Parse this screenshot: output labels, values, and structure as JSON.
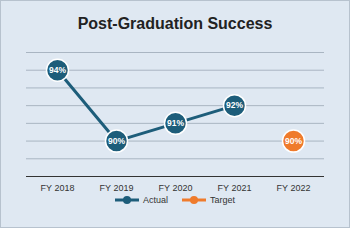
{
  "chart_data": {
    "type": "line",
    "title": "Post-Graduation Success",
    "categories": [
      "FY 2018",
      "FY 2019",
      "FY 2020",
      "FY 2021",
      "FY 2022"
    ],
    "series": [
      {
        "name": "Actual",
        "color": "#1d5d7a",
        "marker": "circle",
        "line_style": "solid",
        "values": [
          94,
          90,
          91,
          92,
          null
        ],
        "value_labels": [
          "94%",
          "90%",
          "91%",
          "92%",
          null
        ]
      },
      {
        "name": "Target",
        "color": "#ef7b2c",
        "marker": "circle",
        "line_style": "solid",
        "values": [
          null,
          null,
          null,
          null,
          90
        ],
        "value_labels": [
          null,
          null,
          null,
          null,
          "90%"
        ]
      }
    ],
    "ylim": [
      88,
      95
    ],
    "yticks": [
      88,
      89,
      90,
      91,
      92,
      93,
      94,
      95
    ],
    "grid": true,
    "tick_labels": "x",
    "data_labels": true,
    "legend": "bottom"
  }
}
